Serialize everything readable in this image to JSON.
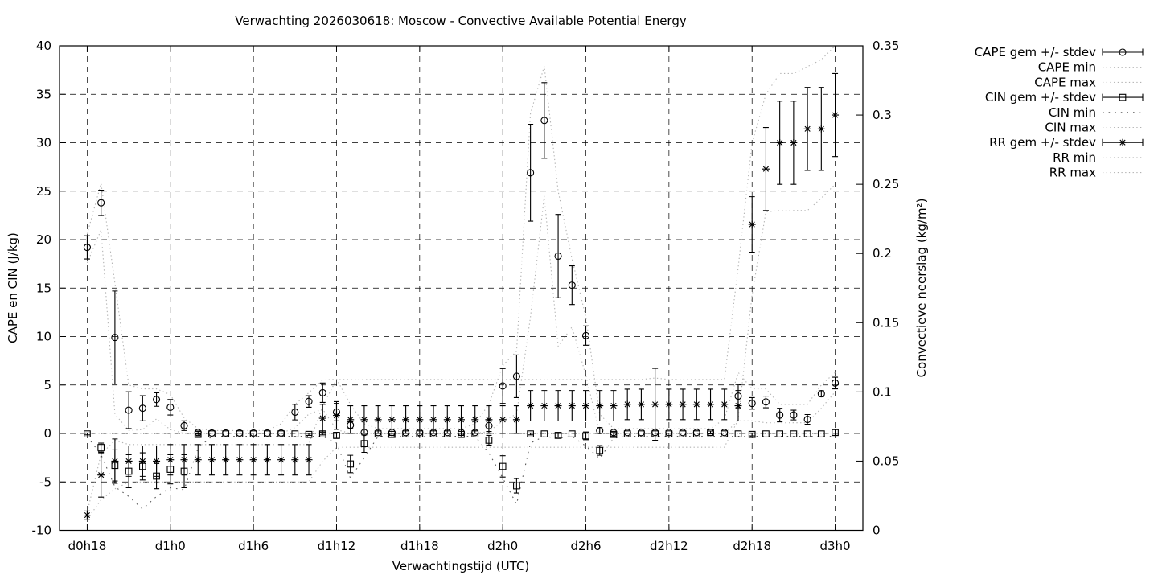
{
  "chart_data": {
    "type": "scatter",
    "variant": "errorbar-series-with-minmax-envelopes",
    "title": "Verwachting 2026030618: Moscow - Convective Available Potential Energy",
    "xlabel": "Verwachtingstijd (UTC)",
    "ylabel_left": "CAPE en CIN (J/kg)",
    "ylabel_right": "Convectieve neerslag (kg/m²)",
    "xlim_hours": [
      16,
      74
    ],
    "ylim_left": [
      -10,
      40
    ],
    "ylim_right": [
      0,
      0.35
    ],
    "grid": true,
    "legend_position": "outside-right-top",
    "colors": {
      "data": "#000000",
      "minmax_dotted": "#b2b2b2",
      "cin_min_dotted": "#595959",
      "grid": "#000000",
      "background": "#ffffff"
    },
    "x_tick_hours": [
      18,
      24,
      30,
      36,
      42,
      48,
      54,
      60,
      66,
      72
    ],
    "x_tick_labels": [
      "d0h18",
      "d1h0",
      "d1h6",
      "d1h12",
      "d1h18",
      "d2h0",
      "d2h6",
      "d2h12",
      "d2h18",
      "d3h0"
    ],
    "y_left_ticks": [
      -10,
      -5,
      0,
      5,
      10,
      15,
      20,
      25,
      30,
      35,
      40
    ],
    "y_left_tick_labels": [
      "-10",
      "-5",
      "0",
      "5",
      "10",
      "15",
      "20",
      "25",
      "30",
      "35",
      "40"
    ],
    "y_right_ticks": [
      0,
      0.05,
      0.1,
      0.15,
      0.2,
      0.25,
      0.3,
      0.35
    ],
    "y_right_tick_labels": [
      "0",
      "0.05",
      "0.1",
      "0.15",
      "0.2",
      "0.25",
      "0.3",
      "0.35"
    ],
    "x_hours": [
      18,
      19,
      20,
      21,
      22,
      23,
      24,
      25,
      26,
      27,
      28,
      29,
      30,
      31,
      32,
      33,
      34,
      35,
      36,
      37,
      38,
      39,
      40,
      41,
      42,
      43,
      44,
      45,
      46,
      47,
      48,
      49,
      50,
      51,
      52,
      53,
      54,
      55,
      56,
      57,
      58,
      59,
      60,
      61,
      62,
      63,
      64,
      65,
      66,
      67,
      68,
      69,
      70,
      71,
      72
    ],
    "series": [
      {
        "name": "CAPE gem +/- stdev",
        "axis": "left",
        "style": "errorbars",
        "marker": "circle",
        "mean": [
          19.2,
          23.8,
          9.9,
          2.4,
          2.6,
          3.5,
          2.7,
          0.8,
          0.1,
          0.05,
          0.05,
          0.05,
          0.05,
          0.05,
          0.05,
          2.2,
          3.3,
          4.2,
          2.2,
          0.85,
          0.1,
          0.1,
          0.1,
          0.1,
          0.1,
          0.1,
          0.1,
          0.1,
          0.1,
          0.8,
          4.9,
          5.9,
          26.9,
          32.3,
          18.3,
          15.3,
          10.1,
          0.3,
          0.1,
          0.1,
          0.1,
          0.1,
          0.1,
          0.1,
          0.1,
          0.1,
          0.1,
          3.85,
          3.1,
          3.25,
          1.9,
          1.9,
          1.45,
          4.1,
          5.2
        ],
        "stdev": [
          1.2,
          1.3,
          4.8,
          1.9,
          1.3,
          0.7,
          0.8,
          0.5,
          0.15,
          0,
          0,
          0,
          0,
          0,
          0,
          0.8,
          0.6,
          1.0,
          0.9,
          0.35,
          0,
          0,
          0,
          0,
          0,
          0,
          0,
          0,
          0,
          0.6,
          1.8,
          2.2,
          5.0,
          3.9,
          4.3,
          2.0,
          1.0,
          0.3,
          0,
          0,
          0,
          0,
          0,
          0,
          0,
          0,
          0,
          1.2,
          0.6,
          0.6,
          0.7,
          0.5,
          0.5,
          0.3,
          0.6
        ]
      },
      {
        "name": "CAPE min",
        "axis": "left",
        "style": "dotted",
        "values": [
          17.6,
          21.0,
          2.0,
          0.3,
          0.4,
          1.5,
          0.4,
          0,
          0,
          0,
          0,
          0,
          0,
          0,
          0,
          0.6,
          2.0,
          2.5,
          0.4,
          0,
          0,
          0,
          0,
          0,
          0,
          0,
          0,
          0,
          0,
          0.2,
          1.3,
          2.0,
          12.0,
          24.5,
          9.0,
          11.0,
          6.0,
          0,
          0,
          0,
          0,
          0,
          0,
          0,
          0,
          0,
          0,
          1.3,
          1.3,
          1.1,
          1.1,
          1.1,
          1.1,
          2.6,
          4.3
        ]
      },
      {
        "name": "CAPE max",
        "axis": "left",
        "style": "dotted",
        "values": [
          20.6,
          25.8,
          15.5,
          5.0,
          4.6,
          4.6,
          4.0,
          1.6,
          0.5,
          0.3,
          0.3,
          0.3,
          0.3,
          0.3,
          1.0,
          3.0,
          4.2,
          5.5,
          5.6,
          3.0,
          1.0,
          0.5,
          0.5,
          0.5,
          0.5,
          0.5,
          0.5,
          0.5,
          1.0,
          3.0,
          7.0,
          8.5,
          33.0,
          37.9,
          25.0,
          18.0,
          12.0,
          2.0,
          0.5,
          0.5,
          0.5,
          0.5,
          0.5,
          0.5,
          0.5,
          0.5,
          1.5,
          6.3,
          4.6,
          4.6,
          3.0,
          3.0,
          3.0,
          5.0,
          6.3
        ]
      },
      {
        "name": "CIN gem +/- stdev",
        "axis": "left",
        "style": "errorbars",
        "marker": "square",
        "mean": [
          -0.05,
          -1.45,
          -3.3,
          -3.9,
          -3.4,
          -4.4,
          -3.7,
          -3.9,
          -0.1,
          -0.05,
          -0.05,
          -0.05,
          -0.05,
          -0.05,
          -0.05,
          -0.05,
          -0.1,
          -0.05,
          -0.2,
          -3.15,
          -1.05,
          -0.05,
          -0.1,
          -0.05,
          -0.05,
          -0.05,
          -0.05,
          -0.1,
          -0.05,
          -0.7,
          -3.4,
          -5.4,
          -0.05,
          -0.05,
          -0.2,
          -0.05,
          -0.25,
          -1.75,
          -0.1,
          -0.05,
          -0.05,
          -0.05,
          -0.05,
          -0.05,
          -0.05,
          0.1,
          -0.05,
          -0.05,
          -0.1,
          -0.05,
          -0.05,
          -0.05,
          -0.05,
          -0.05,
          0.1
        ],
        "stdev": [
          0.1,
          0.45,
          1.6,
          1.7,
          1.4,
          1.3,
          1.5,
          1.7,
          0.15,
          0,
          0,
          0,
          0,
          0,
          0,
          0,
          0.1,
          0.1,
          0.3,
          0.9,
          0.9,
          0,
          0.1,
          0,
          0,
          0,
          0,
          0.1,
          0,
          0.5,
          1.1,
          0.75,
          0.1,
          0,
          0.2,
          0,
          0.4,
          0.5,
          0.2,
          0,
          0,
          0,
          0,
          0,
          0,
          0.15,
          0,
          0,
          0.15,
          0,
          0,
          0,
          0,
          0,
          0.3
        ]
      },
      {
        "name": "CIN min",
        "axis": "left",
        "style": "dotted-sparse",
        "values": [
          -0.3,
          -2.2,
          -5.5,
          -6.5,
          -7.8,
          -6.5,
          -5.6,
          -5.8,
          -1.5,
          -0.3,
          -0.3,
          -0.3,
          -0.3,
          -0.3,
          -0.3,
          -0.3,
          -0.3,
          -0.3,
          -1.0,
          -4.6,
          -2.5,
          -0.3,
          -0.3,
          -0.3,
          -0.3,
          -0.3,
          -0.3,
          -0.3,
          -0.3,
          -2.0,
          -4.6,
          -7.3,
          -1.0,
          -0.3,
          -0.5,
          -0.3,
          -1.3,
          -2.6,
          -0.5,
          -0.3,
          -0.3,
          -0.3,
          -0.3,
          -0.3,
          -0.3,
          -0.3,
          -0.3,
          -0.3,
          -0.3,
          -0.3,
          -0.3,
          -0.3,
          -0.3,
          -0.3,
          -0.3
        ]
      },
      {
        "name": "CIN max",
        "axis": "left",
        "style": "dotted",
        "values": [
          0,
          0,
          0,
          0,
          0,
          0,
          0,
          0,
          0,
          0,
          0,
          0,
          0,
          0,
          0,
          0,
          0,
          0,
          0,
          0,
          0,
          0,
          0,
          0,
          0,
          0,
          0,
          0,
          0,
          0,
          0,
          0,
          0,
          0,
          0,
          0,
          0,
          0,
          0,
          0,
          0,
          0,
          0,
          0,
          0,
          0,
          0,
          0,
          0,
          0,
          0,
          0,
          0,
          0,
          0
        ]
      },
      {
        "name": "RR gem +/- stdev",
        "axis": "right",
        "style": "errorbars",
        "marker": "asterisk",
        "mean": [
          0.011,
          0.04,
          0.05,
          0.05,
          0.05,
          0.05,
          0.051,
          0.051,
          0.051,
          0.051,
          0.051,
          0.051,
          0.051,
          0.051,
          0.051,
          0.051,
          0.051,
          0.081,
          0.083,
          0.08,
          0.08,
          0.08,
          0.08,
          0.08,
          0.08,
          0.08,
          0.08,
          0.08,
          0.08,
          0.08,
          0.08,
          0.08,
          0.09,
          0.09,
          0.09,
          0.09,
          0.09,
          0.09,
          0.09,
          0.091,
          0.091,
          0.091,
          0.091,
          0.091,
          0.091,
          0.091,
          0.091,
          0.09,
          0.221,
          0.261,
          0.28,
          0.28,
          0.29,
          0.29,
          0.3
        ],
        "stdev": [
          0.003,
          0.016,
          0.016,
          0.011,
          0.011,
          0.011,
          0.011,
          0.011,
          0.011,
          0.011,
          0.011,
          0.011,
          0.011,
          0.011,
          0.011,
          0.011,
          0.011,
          0.01,
          0.01,
          0.01,
          0.01,
          0.01,
          0.01,
          0.01,
          0.01,
          0.01,
          0.01,
          0.01,
          0.01,
          0.01,
          0.01,
          0.01,
          0.011,
          0.011,
          0.011,
          0.011,
          0.011,
          0.011,
          0.011,
          0.011,
          0.011,
          0.026,
          0.011,
          0.011,
          0.011,
          0.011,
          0.011,
          0.011,
          0.02,
          0.03,
          0.03,
          0.03,
          0.03,
          0.03,
          0.03
        ]
      },
      {
        "name": "RR min",
        "axis": "right",
        "style": "dotted",
        "values": [
          0.008,
          0.022,
          0.03,
          0.035,
          0.035,
          0.035,
          0.035,
          0.035,
          0.035,
          0.035,
          0.035,
          0.035,
          0.035,
          0.035,
          0.035,
          0.035,
          0.035,
          0.05,
          0.06,
          0.06,
          0.06,
          0.06,
          0.06,
          0.06,
          0.06,
          0.06,
          0.06,
          0.06,
          0.06,
          0.06,
          0.06,
          0.06,
          0.06,
          0.06,
          0.06,
          0.06,
          0.06,
          0.06,
          0.06,
          0.06,
          0.06,
          0.06,
          0.06,
          0.06,
          0.06,
          0.06,
          0.06,
          0.08,
          0.17,
          0.23,
          0.231,
          0.231,
          0.231,
          0.24,
          0.25
        ]
      },
      {
        "name": "RR max",
        "axis": "right",
        "style": "dotted",
        "values": [
          0.013,
          0.055,
          0.065,
          0.062,
          0.062,
          0.062,
          0.062,
          0.062,
          0.062,
          0.062,
          0.062,
          0.062,
          0.062,
          0.062,
          0.062,
          0.062,
          0.062,
          0.09,
          0.109,
          0.109,
          0.109,
          0.109,
          0.109,
          0.109,
          0.109,
          0.109,
          0.109,
          0.109,
          0.109,
          0.109,
          0.109,
          0.109,
          0.109,
          0.109,
          0.109,
          0.109,
          0.109,
          0.109,
          0.109,
          0.109,
          0.109,
          0.11,
          0.109,
          0.109,
          0.109,
          0.109,
          0.109,
          0.19,
          0.28,
          0.315,
          0.33,
          0.33,
          0.335,
          0.34,
          0.35
        ]
      }
    ]
  }
}
